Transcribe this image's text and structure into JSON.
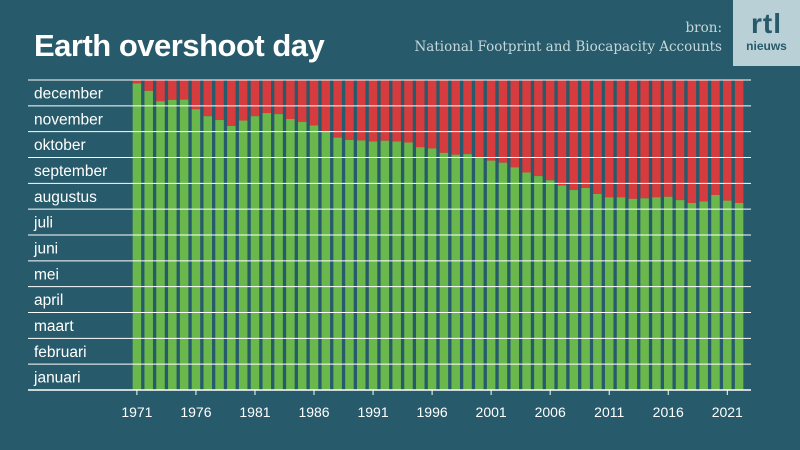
{
  "header": {
    "title": "Earth overshoot day",
    "source_label": "bron:",
    "source_name": "National Footprint and Biocapacity Accounts"
  },
  "logo": {
    "main": "rtl",
    "sub": "nieuws"
  },
  "colors": {
    "background": "#275a6a",
    "used": "#6ab84c",
    "overshoot": "#d63b3d",
    "gridline": "#ffffff",
    "text": "#ffffff"
  },
  "chart_data": {
    "type": "bar",
    "stacked": true,
    "title": "Earth overshoot day",
    "xlabel": "",
    "ylabel": "",
    "ylim": [
      0,
      12
    ],
    "grid": true,
    "y_tick_labels": [
      "januari",
      "februari",
      "maart",
      "april",
      "mei",
      "juni",
      "juli",
      "augustus",
      "september",
      "oktober",
      "november",
      "december"
    ],
    "x_tick_labels": [
      "1971",
      "1976",
      "1981",
      "1986",
      "1991",
      "1996",
      "2001",
      "2006",
      "2011",
      "2016",
      "2021"
    ],
    "x": [
      1971,
      1972,
      1973,
      1974,
      1975,
      1976,
      1977,
      1978,
      1979,
      1980,
      1981,
      1982,
      1983,
      1984,
      1985,
      1986,
      1987,
      1988,
      1989,
      1990,
      1991,
      1992,
      1993,
      1994,
      1995,
      1996,
      1997,
      1998,
      1999,
      2000,
      2001,
      2002,
      2003,
      2004,
      2005,
      2006,
      2007,
      2008,
      2009,
      2010,
      2011,
      2012,
      2013,
      2014,
      2015,
      2016,
      2017,
      2018,
      2019,
      2020,
      2021,
      2022
    ],
    "series": [
      {
        "values": [
          11.87,
          11.58,
          11.18,
          11.23,
          11.24,
          10.87,
          10.6,
          10.45,
          10.22,
          10.43,
          10.6,
          10.72,
          10.68,
          10.49,
          10.38,
          10.24,
          10.0,
          9.77,
          9.68,
          9.66,
          9.62,
          9.65,
          9.62,
          9.58,
          9.4,
          9.35,
          9.18,
          9.11,
          9.13,
          9.02,
          8.88,
          8.8,
          8.62,
          8.42,
          8.28,
          8.12,
          7.92,
          7.74,
          7.82,
          7.59,
          7.46,
          7.46,
          7.4,
          7.42,
          7.46,
          7.48,
          7.35,
          7.24,
          7.3,
          7.55,
          7.33,
          7.24
        ]
      },
      {
        "values": [
          0.13,
          0.42,
          0.82,
          0.77,
          0.76,
          1.13,
          1.4,
          1.55,
          1.78,
          1.57,
          1.4,
          1.28,
          1.32,
          1.51,
          1.62,
          1.76,
          2.0,
          2.23,
          2.32,
          2.34,
          2.38,
          2.35,
          2.38,
          2.42,
          2.6,
          2.65,
          2.82,
          2.89,
          2.87,
          2.98,
          3.12,
          3.2,
          3.38,
          3.58,
          3.72,
          3.88,
          4.08,
          4.26,
          4.18,
          4.41,
          4.54,
          4.54,
          4.6,
          4.58,
          4.54,
          4.52,
          4.65,
          4.76,
          4.7,
          4.45,
          4.67,
          4.76
        ]
      }
    ]
  }
}
